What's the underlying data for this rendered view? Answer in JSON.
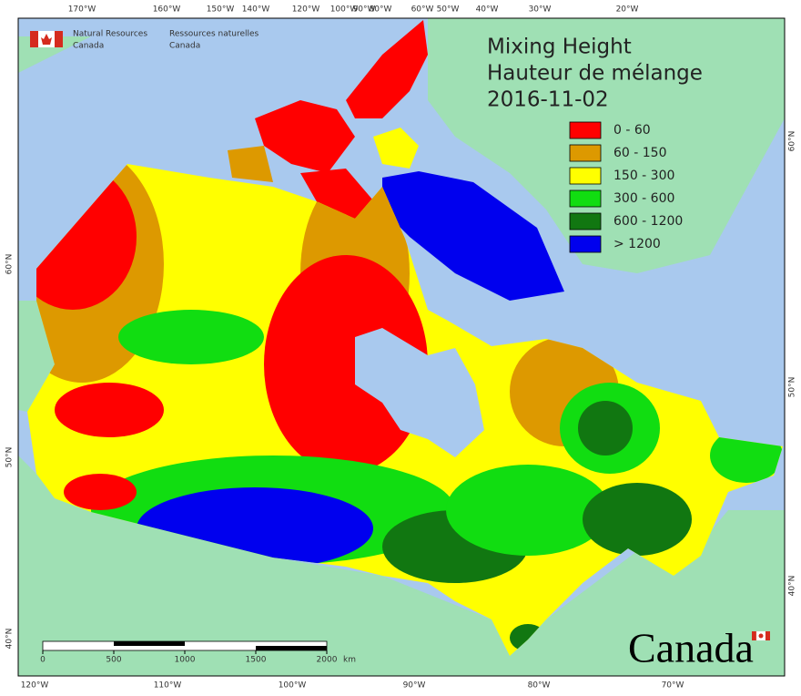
{
  "header": {
    "agency_en": [
      "Natural Resources",
      "Canada"
    ],
    "agency_fr": [
      "Ressources naturelles",
      "Canada"
    ]
  },
  "title": [
    "Mixing Height",
    "Hauteur de mélange",
    "2016-11-02"
  ],
  "legend": [
    {
      "label": "0 - 60",
      "color": "#ff0000"
    },
    {
      "label": "60 - 150",
      "color": "#dd9900"
    },
    {
      "label": "150 - 300",
      "color": "#ffff00"
    },
    {
      "label": "300 - 600",
      "color": "#11dd11"
    },
    {
      "label": "600 - 1200",
      "color": "#117711"
    },
    {
      "label": "> 1200",
      "color": "#0000ee"
    }
  ],
  "top_labels": [
    "170°W",
    "160°W",
    "150°W",
    "140°W",
    "120°W",
    "100°W",
    "90°W",
    "80°W",
    "60°W",
    "50°W",
    "40°W",
    "30°W",
    "20°W"
  ],
  "bottom_labels": [
    "120°W",
    "110°W",
    "100°W",
    "90°W",
    "80°W",
    "70°W"
  ],
  "left_labels": [
    "60°N",
    "50°N",
    "40°N"
  ],
  "right_labels": [
    "60°N",
    "50°N",
    "40°N"
  ],
  "scale": {
    "ticks": [
      0,
      500,
      1000,
      1500,
      2000
    ],
    "unit": "km"
  },
  "wordmark": "Canada"
}
